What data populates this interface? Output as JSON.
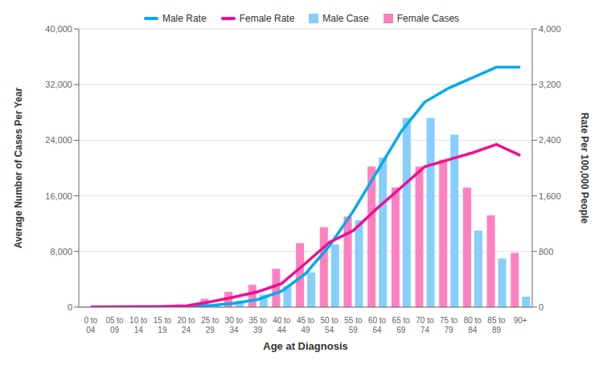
{
  "chart_data": {
    "type": "bar",
    "xlabel": "Age at Diagnosis",
    "ylabel": "Average Number of Cases Per Year",
    "y2label": "Rate Per 100,000 People",
    "categories": [
      "0 to\n04",
      "05 to\n09",
      "10 to\n14",
      "15 to\n19",
      "20 to\n24",
      "25 to\n29",
      "30 to\n34",
      "35 to\n39",
      "40 to\n44",
      "45 to\n49",
      "50 to\n54",
      "55 to\n59",
      "60 to\n64",
      "65 to\n69",
      "70 to\n74",
      "75 to\n79",
      "80 to\n84",
      "85 to\n89",
      "90+"
    ],
    "series": [
      {
        "name": "Male Rate",
        "type": "line",
        "axis": "y2",
        "color": "#00AAEE",
        "values": [
          3,
          5,
          7,
          9,
          12,
          22,
          55,
          110,
          230,
          480,
          880,
          1380,
          1950,
          2520,
          2950,
          3150,
          3300,
          3450,
          3450
        ]
      },
      {
        "name": "Female Rate",
        "type": "line",
        "axis": "y2",
        "color": "#EE1090",
        "values": [
          3,
          4,
          6,
          8,
          18,
          75,
          145,
          220,
          340,
          630,
          930,
          1100,
          1420,
          1720,
          2020,
          2120,
          2220,
          2340,
          2180
        ]
      },
      {
        "name": "Male Case",
        "type": "bar",
        "color": "#87CEFA",
        "values": [
          50,
          80,
          100,
          120,
          150,
          350,
          900,
          1800,
          3000,
          5000,
          9000,
          12500,
          21500,
          27200,
          27200,
          24800,
          11000,
          7000,
          1500
        ]
      },
      {
        "name": "Female Cases",
        "type": "bar",
        "color": "#FF80C0",
        "values": [
          50,
          80,
          100,
          130,
          400,
          1200,
          2200,
          3200,
          5500,
          9200,
          11500,
          13000,
          20200,
          17200,
          20200,
          21200,
          17200,
          13200,
          7800
        ]
      }
    ],
    "ylim": [
      0,
      40000
    ],
    "yticks": [
      0,
      {
        "value": 8000,
        "label": "8,000"
      },
      {
        "value": 16000,
        "label": "16,000"
      },
      {
        "value": 24000,
        "label": "24,000"
      },
      {
        "value": 32000,
        "label": "32,000"
      },
      {
        "value": 40000,
        "label": "40,000"
      }
    ],
    "y2lim": [
      0,
      4000
    ],
    "y2ticks": [
      0,
      800,
      {
        "value": 1600,
        "label": "1,600"
      },
      {
        "value": 2400,
        "label": "2,400"
      },
      {
        "value": 3200,
        "label": "3,200"
      },
      {
        "value": 4000,
        "label": "4,000"
      }
    ],
    "grid": true
  }
}
